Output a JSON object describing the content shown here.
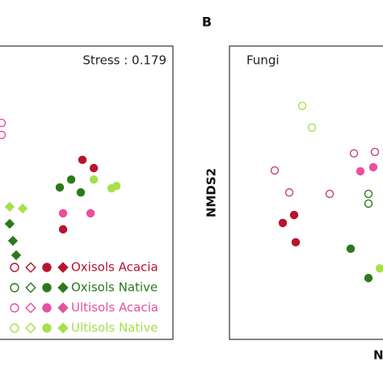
{
  "chart_data": [
    {
      "type": "scatter",
      "annotation": "Stress : 0.179",
      "xlim": [
        0,
        100
      ],
      "ylim": [
        0,
        100
      ],
      "legend": "bottom-right",
      "series": [
        {
          "name": "Oxisols Acacia",
          "color": "#b8142e",
          "x": [
            50,
            56.3,
            39.3
          ],
          "values": [
            61.2,
            58.4,
            37.5
          ],
          "markers": [
            "filled-circle",
            "filled-circle",
            "filled-circle"
          ]
        },
        {
          "name": "Oxisols Native",
          "color": "#2a7a1c",
          "x": [
            43.8,
            37.5,
            49.1,
            9.8,
            11.6,
            13.4
          ],
          "values": [
            54.5,
            51.8,
            50.1,
            39.4,
            33.6,
            28.7
          ],
          "markers": [
            "filled-circle",
            "filled-circle",
            "filled-circle",
            "filled-diamond",
            "filled-diamond",
            "filled-diamond"
          ]
        },
        {
          "name": "Ultisols Acacia",
          "color": "#e8509e",
          "x": [
            5.4,
            5.4,
            39.3,
            54.5
          ],
          "values": [
            73.8,
            69.7,
            43,
            43
          ],
          "markers": [
            "open-circle",
            "open-circle",
            "filled-circle",
            "filled-circle"
          ]
        },
        {
          "name": "Ultisols Native",
          "color": "#a6e04c",
          "x": [
            56.3,
            66.1,
            68.8,
            9.8,
            17
          ],
          "values": [
            54.5,
            51.5,
            52.3,
            45.2,
            44.6
          ],
          "markers": [
            "filled-circle",
            "filled-circle",
            "filled-circle",
            "filled-diamond",
            "filled-diamond"
          ]
        }
      ]
    },
    {
      "type": "scatter",
      "panel_label": "B",
      "title": "Fungi",
      "y_label": "NMDS2",
      "x_label": "N",
      "xlim": [
        0,
        100
      ],
      "ylim": [
        0,
        100
      ],
      "series": [
        {
          "color": "#a6e04c",
          "x": [
            45,
            51,
            93
          ],
          "values": [
            79.6,
            72.2,
            24.2
          ],
          "markers": [
            "open-circle",
            "open-circle",
            "filled-circle"
          ]
        },
        {
          "color": "#c2407e",
          "x": [
            28,
            37,
            62,
            77,
            90
          ],
          "values": [
            57.6,
            50.1,
            49.6,
            63.4,
            63.9
          ],
          "markers": [
            "open-circle",
            "open-circle",
            "open-circle",
            "open-circle",
            "open-circle"
          ]
        },
        {
          "color": "#e8509e",
          "x": [
            81,
            89
          ],
          "values": [
            57.3,
            58.7
          ],
          "markers": [
            "filled-circle",
            "filled-circle"
          ]
        },
        {
          "color": "#b8142e",
          "x": [
            40,
            33,
            41
          ],
          "values": [
            42.4,
            39.7,
            33.1
          ],
          "markers": [
            "filled-circle",
            "filled-circle",
            "filled-circle"
          ]
        },
        {
          "color": "#2a7a1c",
          "x": [
            86,
            86,
            75,
            86
          ],
          "values": [
            49.6,
            46.3,
            30.9,
            20.9
          ],
          "markers": [
            "open-circle",
            "open-circle",
            "filled-circle",
            "filled-circle"
          ]
        }
      ]
    }
  ]
}
